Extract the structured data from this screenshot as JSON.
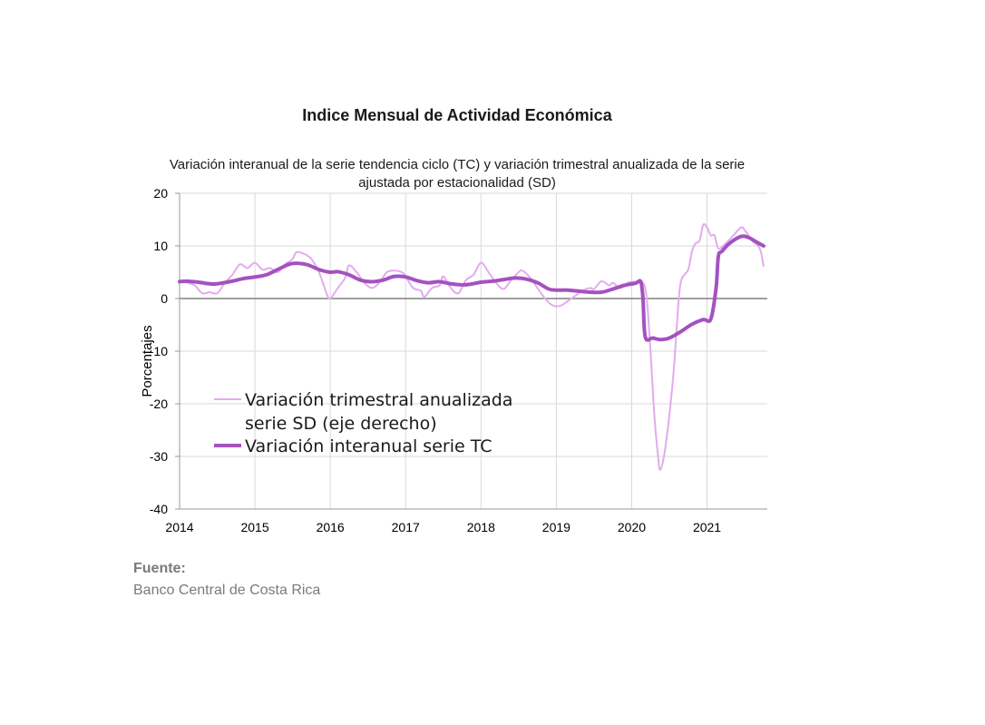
{
  "chart_data": {
    "type": "line",
    "title": "Indice Mensual de  Actividad Económica",
    "subtitle_lines": [
      "Variación interanual de la serie tendencia ciclo (TC) y variación trimestral anualizada de la serie",
      "ajustada por estacionalidad (SD)"
    ],
    "ylabel": "Porcentajes",
    "ylim": [
      -40,
      20
    ],
    "yticks": [
      20,
      10,
      0,
      -10,
      -20,
      -30,
      -40
    ],
    "xlim": [
      2014.0,
      2021.8
    ],
    "xticks": [
      "2014",
      "2015",
      "2016",
      "2017",
      "2018",
      "2019",
      "2020",
      "2021"
    ],
    "grid": true,
    "legend_position": "lower-left inside plot",
    "series": [
      {
        "name_lines": [
          "Variación trimestral anualizada",
          "serie SD (eje derecho)"
        ],
        "color": "#e4aaee",
        "style": "thin",
        "points": [
          [
            2014.0,
            3.5
          ],
          [
            2014.1,
            3.0
          ],
          [
            2014.2,
            2.5
          ],
          [
            2014.3,
            1.0
          ],
          [
            2014.4,
            1.2
          ],
          [
            2014.5,
            1.0
          ],
          [
            2014.6,
            3.0
          ],
          [
            2014.7,
            4.5
          ],
          [
            2014.8,
            6.5
          ],
          [
            2014.9,
            5.8
          ],
          [
            2015.0,
            6.8
          ],
          [
            2015.1,
            5.5
          ],
          [
            2015.2,
            5.8
          ],
          [
            2015.3,
            5.0
          ],
          [
            2015.4,
            6.5
          ],
          [
            2015.5,
            7.5
          ],
          [
            2015.55,
            8.8
          ],
          [
            2015.65,
            8.5
          ],
          [
            2015.75,
            7.5
          ],
          [
            2015.85,
            5.0
          ],
          [
            2015.95,
            1.0
          ],
          [
            2016.0,
            0.0
          ],
          [
            2016.1,
            2.0
          ],
          [
            2016.2,
            4.0
          ],
          [
            2016.25,
            6.3
          ],
          [
            2016.35,
            5.0
          ],
          [
            2016.45,
            3.0
          ],
          [
            2016.55,
            2.0
          ],
          [
            2016.65,
            3.0
          ],
          [
            2016.75,
            5.0
          ],
          [
            2016.85,
            5.3
          ],
          [
            2016.95,
            5.0
          ],
          [
            2017.0,
            4.2
          ],
          [
            2017.1,
            2.0
          ],
          [
            2017.2,
            1.5
          ],
          [
            2017.25,
            0.3
          ],
          [
            2017.35,
            2.0
          ],
          [
            2017.45,
            2.5
          ],
          [
            2017.5,
            4.2
          ],
          [
            2017.6,
            2.0
          ],
          [
            2017.7,
            1.0
          ],
          [
            2017.8,
            3.5
          ],
          [
            2017.9,
            4.5
          ],
          [
            2018.0,
            6.8
          ],
          [
            2018.1,
            5.0
          ],
          [
            2018.2,
            3.0
          ],
          [
            2018.3,
            1.8
          ],
          [
            2018.4,
            3.5
          ],
          [
            2018.5,
            5.0
          ],
          [
            2018.55,
            5.3
          ],
          [
            2018.65,
            4.0
          ],
          [
            2018.75,
            2.0
          ],
          [
            2018.85,
            0.0
          ],
          [
            2018.95,
            -1.3
          ],
          [
            2019.05,
            -1.4
          ],
          [
            2019.15,
            -0.5
          ],
          [
            2019.25,
            0.5
          ],
          [
            2019.35,
            1.5
          ],
          [
            2019.45,
            2.0
          ],
          [
            2019.5,
            1.8
          ],
          [
            2019.6,
            3.3
          ],
          [
            2019.7,
            2.5
          ],
          [
            2019.75,
            3.0
          ],
          [
            2019.85,
            2.0
          ],
          [
            2019.95,
            3.0
          ],
          [
            2020.05,
            3.2
          ],
          [
            2020.15,
            3.0
          ],
          [
            2020.2,
            0.0
          ],
          [
            2020.25,
            -10.0
          ],
          [
            2020.3,
            -22.0
          ],
          [
            2020.35,
            -30.0
          ],
          [
            2020.38,
            -32.5
          ],
          [
            2020.45,
            -28.0
          ],
          [
            2020.55,
            -15.0
          ],
          [
            2020.6,
            -5.0
          ],
          [
            2020.65,
            3.0
          ],
          [
            2020.75,
            5.5
          ],
          [
            2020.8,
            9.0
          ],
          [
            2020.85,
            10.5
          ],
          [
            2020.9,
            11.0
          ],
          [
            2020.95,
            14.0
          ],
          [
            2021.0,
            13.5
          ],
          [
            2021.05,
            12.0
          ],
          [
            2021.1,
            12.0
          ],
          [
            2021.15,
            9.5
          ],
          [
            2021.25,
            10.5
          ],
          [
            2021.35,
            12.0
          ],
          [
            2021.45,
            13.5
          ],
          [
            2021.5,
            13.0
          ],
          [
            2021.6,
            11.0
          ],
          [
            2021.7,
            9.5
          ],
          [
            2021.75,
            6.2
          ]
        ]
      },
      {
        "name_lines": [
          "Variación interanual serie TC"
        ],
        "color": "#a452bf",
        "style": "thick",
        "points": [
          [
            2014.0,
            3.2
          ],
          [
            2014.1,
            3.3
          ],
          [
            2014.25,
            3.1
          ],
          [
            2014.4,
            2.8
          ],
          [
            2014.5,
            2.8
          ],
          [
            2014.7,
            3.3
          ],
          [
            2014.85,
            3.8
          ],
          [
            2015.0,
            4.1
          ],
          [
            2015.15,
            4.5
          ],
          [
            2015.3,
            5.5
          ],
          [
            2015.45,
            6.5
          ],
          [
            2015.55,
            6.7
          ],
          [
            2015.7,
            6.4
          ],
          [
            2015.85,
            5.5
          ],
          [
            2016.0,
            5.0
          ],
          [
            2016.1,
            5.1
          ],
          [
            2016.25,
            4.5
          ],
          [
            2016.4,
            3.5
          ],
          [
            2016.55,
            3.2
          ],
          [
            2016.7,
            3.5
          ],
          [
            2016.85,
            4.2
          ],
          [
            2017.0,
            4.1
          ],
          [
            2017.15,
            3.4
          ],
          [
            2017.3,
            3.0
          ],
          [
            2017.45,
            3.2
          ],
          [
            2017.6,
            2.8
          ],
          [
            2017.75,
            2.6
          ],
          [
            2017.85,
            2.7
          ],
          [
            2018.0,
            3.1
          ],
          [
            2018.15,
            3.3
          ],
          [
            2018.3,
            3.6
          ],
          [
            2018.45,
            3.9
          ],
          [
            2018.6,
            3.7
          ],
          [
            2018.75,
            3.0
          ],
          [
            2018.9,
            1.8
          ],
          [
            2019.0,
            1.6
          ],
          [
            2019.15,
            1.6
          ],
          [
            2019.3,
            1.4
          ],
          [
            2019.45,
            1.2
          ],
          [
            2019.6,
            1.2
          ],
          [
            2019.75,
            1.8
          ],
          [
            2019.9,
            2.5
          ],
          [
            2020.05,
            2.9
          ],
          [
            2020.12,
            3.2
          ],
          [
            2020.15,
            0.0
          ],
          [
            2020.18,
            -7.3
          ],
          [
            2020.28,
            -7.5
          ],
          [
            2020.38,
            -7.8
          ],
          [
            2020.5,
            -7.5
          ],
          [
            2020.65,
            -6.3
          ],
          [
            2020.8,
            -4.9
          ],
          [
            2020.95,
            -4.0
          ],
          [
            2021.05,
            -3.9
          ],
          [
            2021.12,
            2.0
          ],
          [
            2021.15,
            8.0
          ],
          [
            2021.2,
            9.0
          ],
          [
            2021.3,
            10.5
          ],
          [
            2021.45,
            11.8
          ],
          [
            2021.55,
            11.6
          ],
          [
            2021.65,
            10.8
          ],
          [
            2021.75,
            10.0
          ]
        ]
      }
    ]
  },
  "source": {
    "heading": "Fuente:",
    "text": "Banco Central de Costa Rica"
  }
}
